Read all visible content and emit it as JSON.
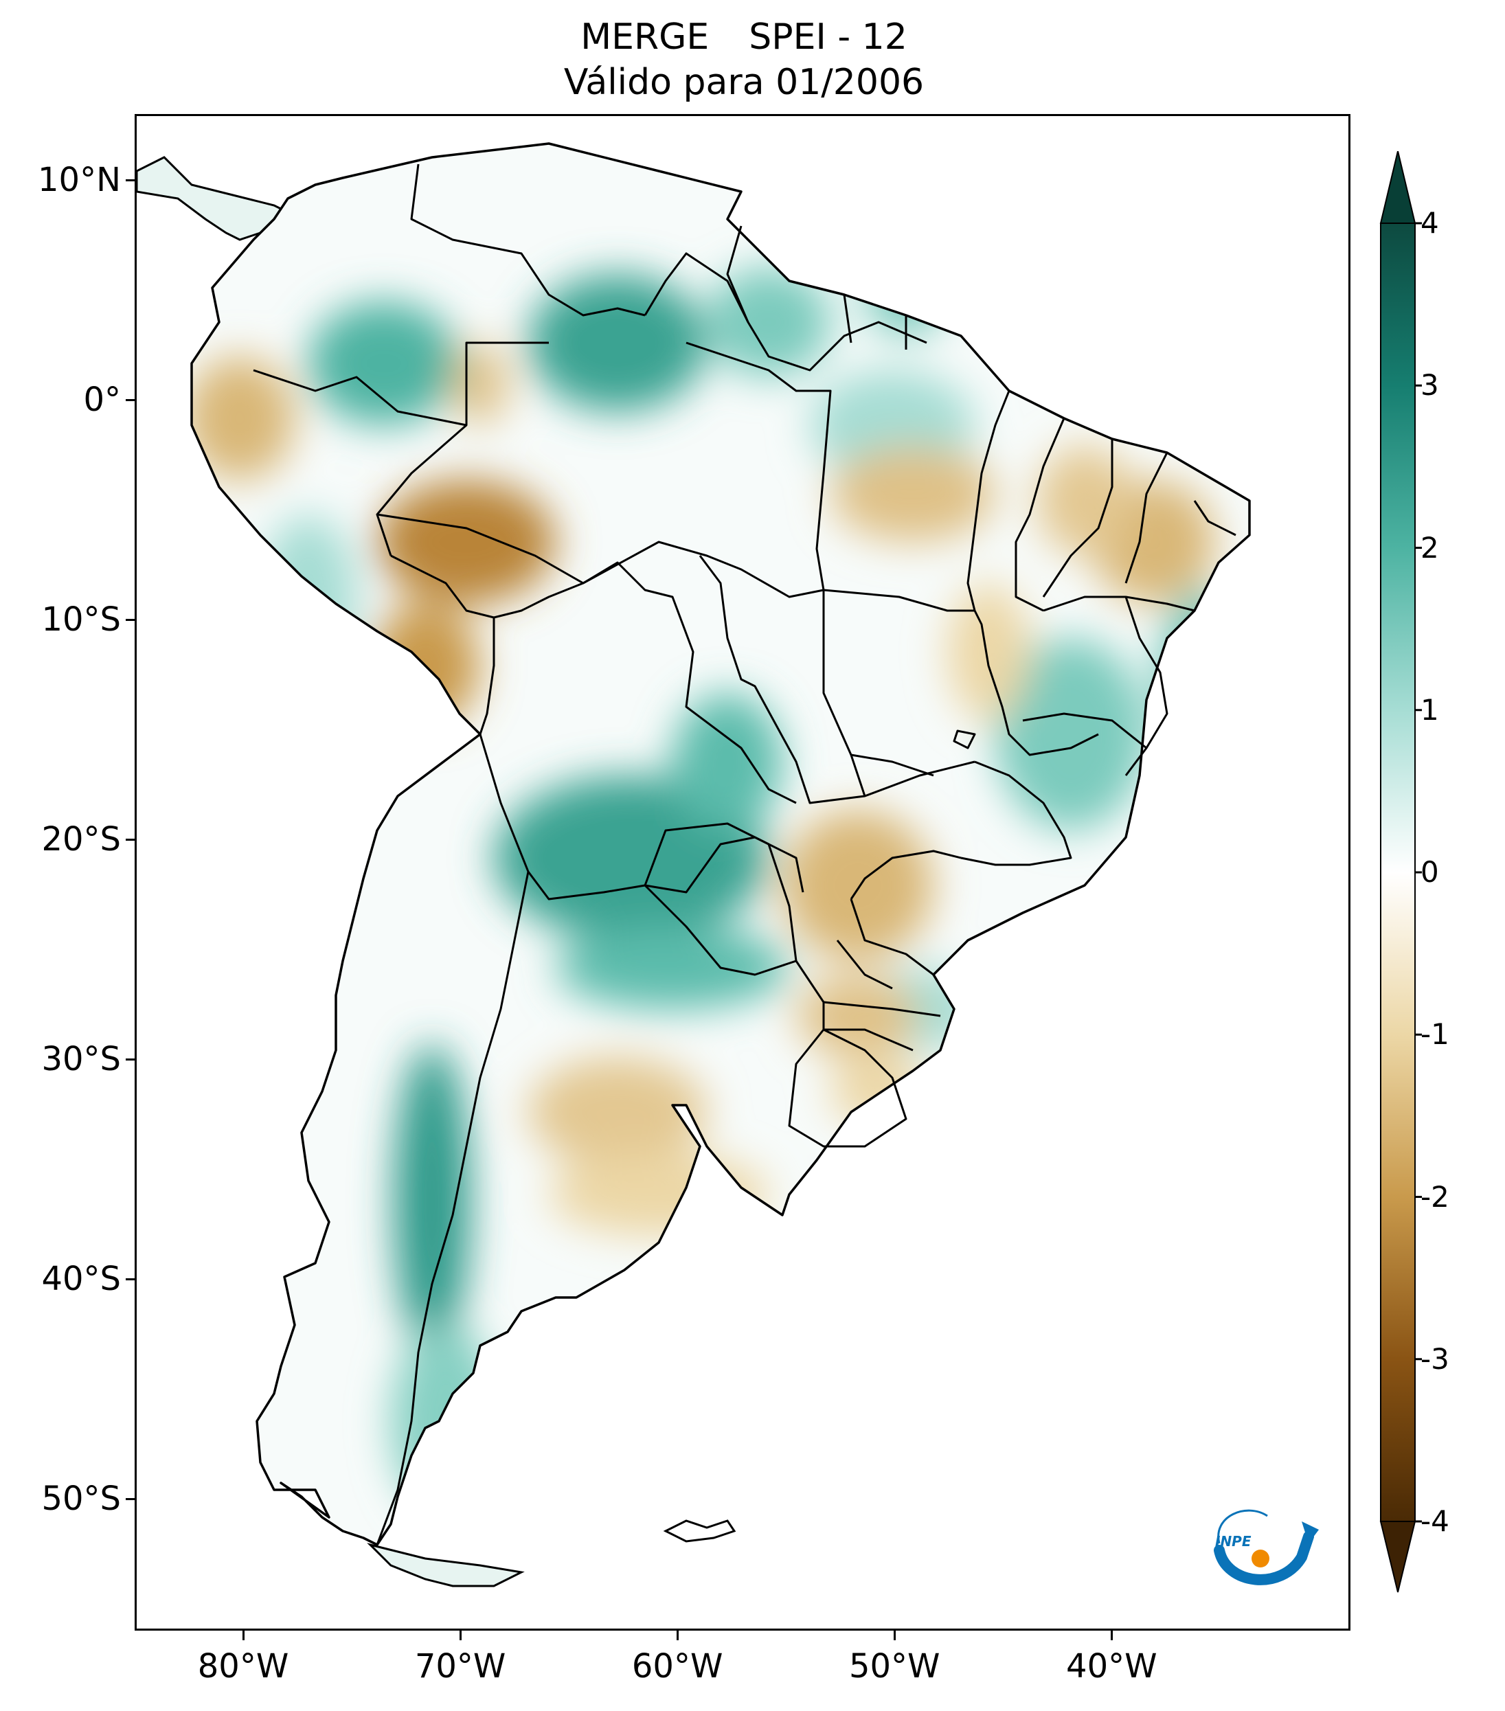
{
  "title": {
    "line1_left": "MERGE",
    "line1_right": "SPEI - 12",
    "line2": "Válido para 01/2006"
  },
  "map": {
    "projection": "PlateCarree",
    "lon_range": [
      -85,
      -29
    ],
    "lat_range": [
      -56,
      13
    ],
    "lat_ticks": [
      {
        "value": 10,
        "label": "10°N"
      },
      {
        "value": 0,
        "label": "0°"
      },
      {
        "value": -10,
        "label": "10°S"
      },
      {
        "value": -20,
        "label": "20°S"
      },
      {
        "value": -30,
        "label": "30°S"
      },
      {
        "value": -40,
        "label": "40°S"
      },
      {
        "value": -50,
        "label": "50°S"
      }
    ],
    "lon_ticks": [
      {
        "value": -80,
        "label": "80°W"
      },
      {
        "value": -70,
        "label": "70°W"
      },
      {
        "value": -60,
        "label": "60°W"
      },
      {
        "value": -50,
        "label": "50°W"
      },
      {
        "value": -40,
        "label": "40°W"
      }
    ],
    "colors": {
      "wet_strong": "#0d5e52",
      "wet_mid": "#2d9a8a",
      "wet_light": "#a6ddd4",
      "neutral": "#ffffff",
      "dry_light": "#ecd7a6",
      "dry_mid": "#c99a4c",
      "dry_strong": "#7a4a0f"
    }
  },
  "colorbar": {
    "min": -4,
    "max": 4,
    "extend": "both",
    "ticks": [
      {
        "value": 4,
        "label": "4"
      },
      {
        "value": 3,
        "label": "3"
      },
      {
        "value": 2,
        "label": "2"
      },
      {
        "value": 1,
        "label": "1"
      },
      {
        "value": 0,
        "label": "0"
      },
      {
        "value": -1,
        "label": "-1"
      },
      {
        "value": -2,
        "label": "-2"
      },
      {
        "value": -3,
        "label": "-3"
      },
      {
        "value": -4,
        "label": "-4"
      }
    ]
  },
  "logo": {
    "text": "INPE",
    "colors": {
      "blue": "#0a73b8",
      "orange": "#f08a00"
    }
  }
}
